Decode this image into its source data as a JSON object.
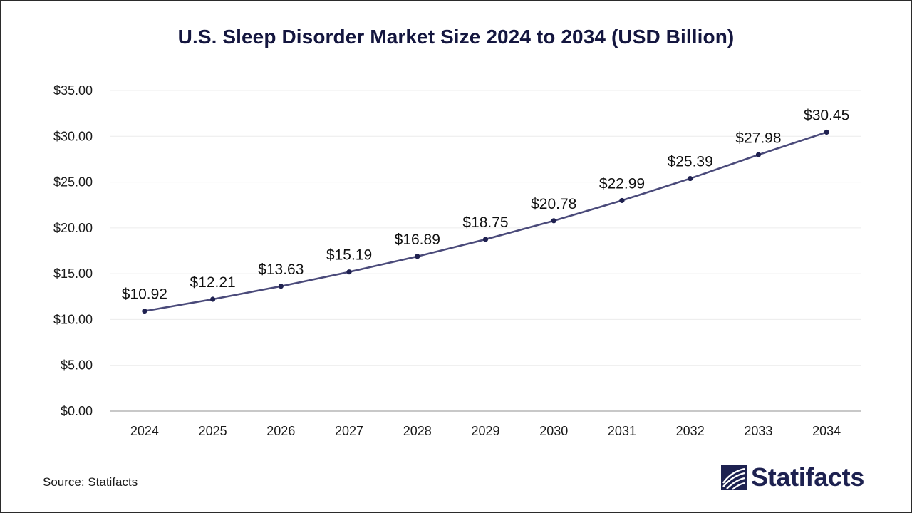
{
  "chart_data": {
    "type": "line",
    "title": "U.S. Sleep Disorder Market Size 2024 to 2034 (USD Billion)",
    "categories": [
      "2024",
      "2025",
      "2026",
      "2027",
      "2028",
      "2029",
      "2030",
      "2031",
      "2032",
      "2033",
      "2034"
    ],
    "values": [
      10.92,
      12.21,
      13.63,
      15.19,
      16.89,
      18.75,
      20.78,
      22.99,
      25.39,
      27.98,
      30.45
    ],
    "data_labels": [
      "$10.92",
      "$12.21",
      "$13.63",
      "$15.19",
      "$16.89",
      "$18.75",
      "$20.78",
      "$22.99",
      "$25.39",
      "$27.98",
      "$30.45"
    ],
    "ylim": [
      0,
      35
    ],
    "y_ticks": [
      0,
      5,
      10,
      15,
      20,
      25,
      30,
      35
    ],
    "y_tick_labels": [
      "$0.00",
      "$5.00",
      "$10.00",
      "$15.00",
      "$20.00",
      "$25.00",
      "$30.00",
      "$35.00"
    ],
    "xlabel": "",
    "ylabel": "",
    "grid": true,
    "legend": "none",
    "line_color": "#4a4a7a",
    "marker_color": "#1f2150"
  },
  "footer": {
    "source": "Source: Statifacts",
    "brand": "Statifacts",
    "brand_icon": "statifacts-logo-icon",
    "brand_color": "#1d2150"
  }
}
